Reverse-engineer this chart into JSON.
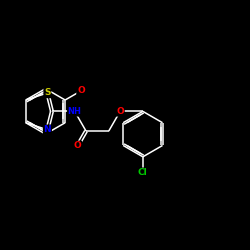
{
  "background_color": "#000000",
  "bond_color": "#ffffff",
  "atom_colors": {
    "O": "#ff0000",
    "N": "#0000ff",
    "S": "#cccc00",
    "Cl": "#00cc00",
    "C": "#ffffff",
    "H": "#ffffff"
  },
  "figsize": [
    2.5,
    2.5
  ],
  "dpi": 100,
  "lw": 1.1
}
